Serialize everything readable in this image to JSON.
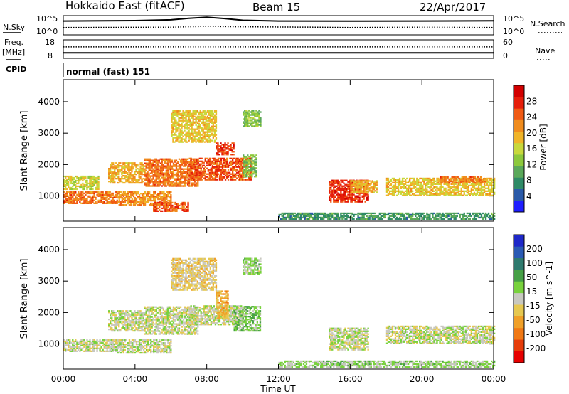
{
  "header": {
    "station": "Hokkaido East (fitACF)",
    "beam": "Beam 15",
    "date": "22/Apr/2017"
  },
  "side_labels": {
    "n_sky": "N.Sky",
    "n_search": "N.Search",
    "freq": "Freq.",
    "freq_unit": "[MHz]",
    "nave": "Nave",
    "cpid": "CPID"
  },
  "noise_panel": {
    "left_top": "10^5",
    "left_bottom": "10^0",
    "right_top": "10^5",
    "right_bottom": "10^0"
  },
  "freq_panel": {
    "left_top": "18",
    "left_bottom": "8",
    "right_top": "60",
    "right_bottom": "0"
  },
  "cpid_text": "normal (fast) 151",
  "x_axis": {
    "label": "Time UT",
    "ticks": [
      "00:00",
      "04:00",
      "08:00",
      "12:00",
      "16:00",
      "20:00",
      "00:00"
    ]
  },
  "power_panel": {
    "ylabel": "Slant Range [km]",
    "yticks": [
      "1000",
      "2000",
      "3000",
      "4000"
    ],
    "colorbar_label": "Power [dB]",
    "colorbar_ticks": [
      "4",
      "8",
      "12",
      "16",
      "20",
      "24",
      "28"
    ],
    "colors": [
      "#1e1eff",
      "#2a5aa8",
      "#2e8a66",
      "#5aa85a",
      "#8cc83c",
      "#c8d83c",
      "#f0b428",
      "#f08c1e",
      "#f05a14",
      "#e61e0a",
      "#d20000"
    ]
  },
  "velocity_panel": {
    "ylabel": "Slant Range [km]",
    "yticks": [
      "1000",
      "2000",
      "3000",
      "4000"
    ],
    "colorbar_label": "Velocity [m s^-1]",
    "colorbar_ticks": [
      "200",
      "100",
      "50",
      "15",
      "-15",
      "-50",
      "-100",
      "-200"
    ],
    "colors": [
      "#1e28c8",
      "#2a5ab4",
      "#2e7a6e",
      "#46a046",
      "#78d23c",
      "#c8c8c0",
      "#e6c850",
      "#f0a028",
      "#f07814",
      "#e63c0a",
      "#e60000"
    ]
  },
  "chart_data": [
    {
      "type": "line",
      "title": "N.Sky / N.Search",
      "x_range_hours": [
        0,
        24
      ],
      "series": [
        {
          "name": "N.Sky",
          "style": "solid",
          "x": [
            0,
            4,
            6,
            7,
            8,
            9,
            10,
            12,
            16,
            20,
            24
          ],
          "y_fraction": [
            0.72,
            0.74,
            0.78,
            0.86,
            0.92,
            0.85,
            0.76,
            0.72,
            0.71,
            0.72,
            0.73
          ]
        },
        {
          "name": "N.Search",
          "style": "dotted",
          "x": [
            0,
            6,
            8,
            10,
            14,
            16,
            20,
            24
          ],
          "y_fraction": [
            0.38,
            0.4,
            0.44,
            0.42,
            0.4,
            0.38,
            0.4,
            0.38
          ]
        }
      ]
    },
    {
      "type": "line",
      "title": "Freq. / Nave",
      "series": [
        {
          "name": "Freq.",
          "style": "solid",
          "x": [
            0,
            24
          ],
          "y": [
            11,
            11
          ]
        },
        {
          "name": "Nave",
          "style": "dotted",
          "x": [
            0,
            24
          ],
          "y_fraction": [
            0.62,
            0.62
          ]
        }
      ]
    },
    {
      "type": "heatmap",
      "title": "Power",
      "x_label": "Time UT",
      "y_label": "Slant Range [km]",
      "colorbar_label": "Power [dB]",
      "x_range": [
        0,
        24
      ],
      "y_range": [
        200,
        4700
      ],
      "value_range": [
        0,
        32
      ],
      "regions": [
        {
          "t": [
            0.0,
            3.0
          ],
          "r": [
            750,
            1150
          ],
          "v": 24
        },
        {
          "t": [
            0.0,
            2.0
          ],
          "r": [
            1200,
            1650
          ],
          "v": 16
        },
        {
          "t": [
            2.5,
            4.5
          ],
          "r": [
            1400,
            2050
          ],
          "v": 20
        },
        {
          "t": [
            3.0,
            6.0
          ],
          "r": [
            700,
            1150
          ],
          "v": 22
        },
        {
          "t": [
            4.5,
            7.5
          ],
          "r": [
            1300,
            2200
          ],
          "v": 24
        },
        {
          "t": [
            5.0,
            7.0
          ],
          "r": [
            500,
            800
          ],
          "v": 26
        },
        {
          "t": [
            6.0,
            8.5
          ],
          "r": [
            2700,
            3700
          ],
          "v": 18
        },
        {
          "t": [
            7.0,
            10.5
          ],
          "r": [
            1500,
            2200
          ],
          "v": 26
        },
        {
          "t": [
            8.5,
            9.5
          ],
          "r": [
            2300,
            2700
          ],
          "v": 28
        },
        {
          "t": [
            10.0,
            10.8
          ],
          "r": [
            1600,
            2300
          ],
          "v": 12
        },
        {
          "t": [
            10.0,
            11.0
          ],
          "r": [
            3200,
            3700
          ],
          "v": 12
        },
        {
          "t": [
            14.8,
            17.0
          ],
          "r": [
            800,
            1500
          ],
          "v": 28
        },
        {
          "t": [
            16.0,
            17.5
          ],
          "r": [
            1100,
            1500
          ],
          "v": 20
        },
        {
          "t": [
            18.0,
            24.0
          ],
          "r": [
            1000,
            1550
          ],
          "v": 18
        },
        {
          "t": [
            21.0,
            23.5
          ],
          "r": [
            1400,
            1600
          ],
          "v": 24
        },
        {
          "t": [
            12.0,
            24.0
          ],
          "r": [
            250,
            450
          ],
          "v": 8
        }
      ]
    },
    {
      "type": "heatmap",
      "title": "Velocity",
      "x_label": "Time UT",
      "y_label": "Slant Range [km]",
      "colorbar_label": "Velocity [m s^-1]",
      "x_range": [
        0,
        24
      ],
      "y_range": [
        200,
        4700
      ],
      "value_range": [
        -200,
        200
      ],
      "regions": [
        {
          "t": [
            0.0,
            3.0
          ],
          "r": [
            750,
            1150
          ],
          "v": 0
        },
        {
          "t": [
            2.5,
            4.5
          ],
          "r": [
            1400,
            2050
          ],
          "v": 0
        },
        {
          "t": [
            3.0,
            6.0
          ],
          "r": [
            700,
            1150
          ],
          "v": 0
        },
        {
          "t": [
            4.5,
            7.5
          ],
          "r": [
            1300,
            2200
          ],
          "v": 0
        },
        {
          "t": [
            6.0,
            8.5
          ],
          "r": [
            2700,
            3700
          ],
          "v": -30
        },
        {
          "t": [
            7.0,
            10.0
          ],
          "r": [
            1600,
            2200
          ],
          "v": 0
        },
        {
          "t": [
            8.5,
            9.2
          ],
          "r": [
            1800,
            2700
          ],
          "v": -60
        },
        {
          "t": [
            9.5,
            11.0
          ],
          "r": [
            1400,
            2200
          ],
          "v": 40
        },
        {
          "t": [
            10.0,
            11.0
          ],
          "r": [
            3200,
            3700
          ],
          "v": 20
        },
        {
          "t": [
            14.8,
            17.0
          ],
          "r": [
            800,
            1500
          ],
          "v": 0
        },
        {
          "t": [
            18.0,
            24.0
          ],
          "r": [
            1000,
            1550
          ],
          "v": 0
        },
        {
          "t": [
            12.0,
            24.0
          ],
          "r": [
            250,
            450
          ],
          "v": 25
        }
      ]
    }
  ]
}
